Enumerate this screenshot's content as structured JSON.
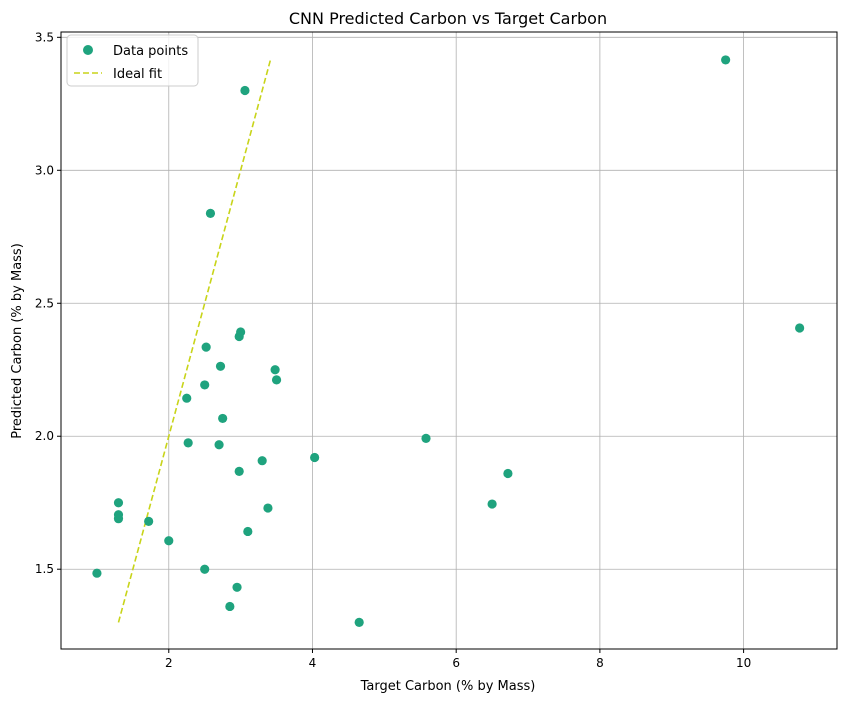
{
  "chart_data": {
    "type": "scatter",
    "title": "CNN Predicted Carbon vs Target Carbon",
    "xlabel": "Target Carbon (% by Mass)",
    "ylabel": "Predicted Carbon (% by Mass)",
    "xlim": [
      0.5,
      11.3
    ],
    "ylim": [
      1.2,
      3.52
    ],
    "xticks": [
      2,
      4,
      6,
      8,
      10
    ],
    "yticks": [
      1.5,
      2.0,
      2.5,
      3.0,
      3.5
    ],
    "xtick_labels": [
      "2",
      "4",
      "6",
      "8",
      "10"
    ],
    "ytick_labels": [
      "1.5",
      "2.0",
      "2.5",
      "3.0",
      "3.5"
    ],
    "grid": true,
    "legend_position": "top-left",
    "legend": [
      "Data points",
      "Ideal fit"
    ],
    "series": [
      {
        "name": "Data points",
        "kind": "scatter",
        "color": "#1fa37e",
        "points": [
          [
            1.0,
            1.485
          ],
          [
            1.3,
            1.75
          ],
          [
            1.3,
            1.705
          ],
          [
            1.3,
            1.69
          ],
          [
            1.72,
            1.68
          ],
          [
            2.0,
            1.607
          ],
          [
            2.25,
            2.143
          ],
          [
            2.27,
            1.975
          ],
          [
            2.5,
            2.193
          ],
          [
            2.52,
            2.335
          ],
          [
            2.5,
            1.5
          ],
          [
            2.58,
            2.838
          ],
          [
            2.7,
            1.968
          ],
          [
            2.72,
            2.263
          ],
          [
            2.75,
            2.067
          ],
          [
            2.85,
            1.36
          ],
          [
            2.95,
            1.432
          ],
          [
            2.98,
            2.375
          ],
          [
            3.0,
            2.392
          ],
          [
            2.98,
            1.868
          ],
          [
            3.06,
            3.3
          ],
          [
            3.1,
            1.642
          ],
          [
            3.3,
            1.908
          ],
          [
            3.38,
            1.73
          ],
          [
            3.48,
            2.25
          ],
          [
            3.5,
            2.212
          ],
          [
            4.03,
            1.92
          ],
          [
            4.65,
            1.3
          ],
          [
            5.58,
            1.992
          ],
          [
            6.5,
            1.745
          ],
          [
            6.72,
            1.86
          ],
          [
            9.75,
            3.415
          ],
          [
            10.78,
            2.407
          ]
        ]
      },
      {
        "name": "Ideal fit",
        "kind": "line",
        "style": "dashed",
        "color": "#c8d419",
        "points": [
          [
            1.3,
            1.3
          ],
          [
            3.42,
            3.42
          ]
        ]
      }
    ]
  }
}
